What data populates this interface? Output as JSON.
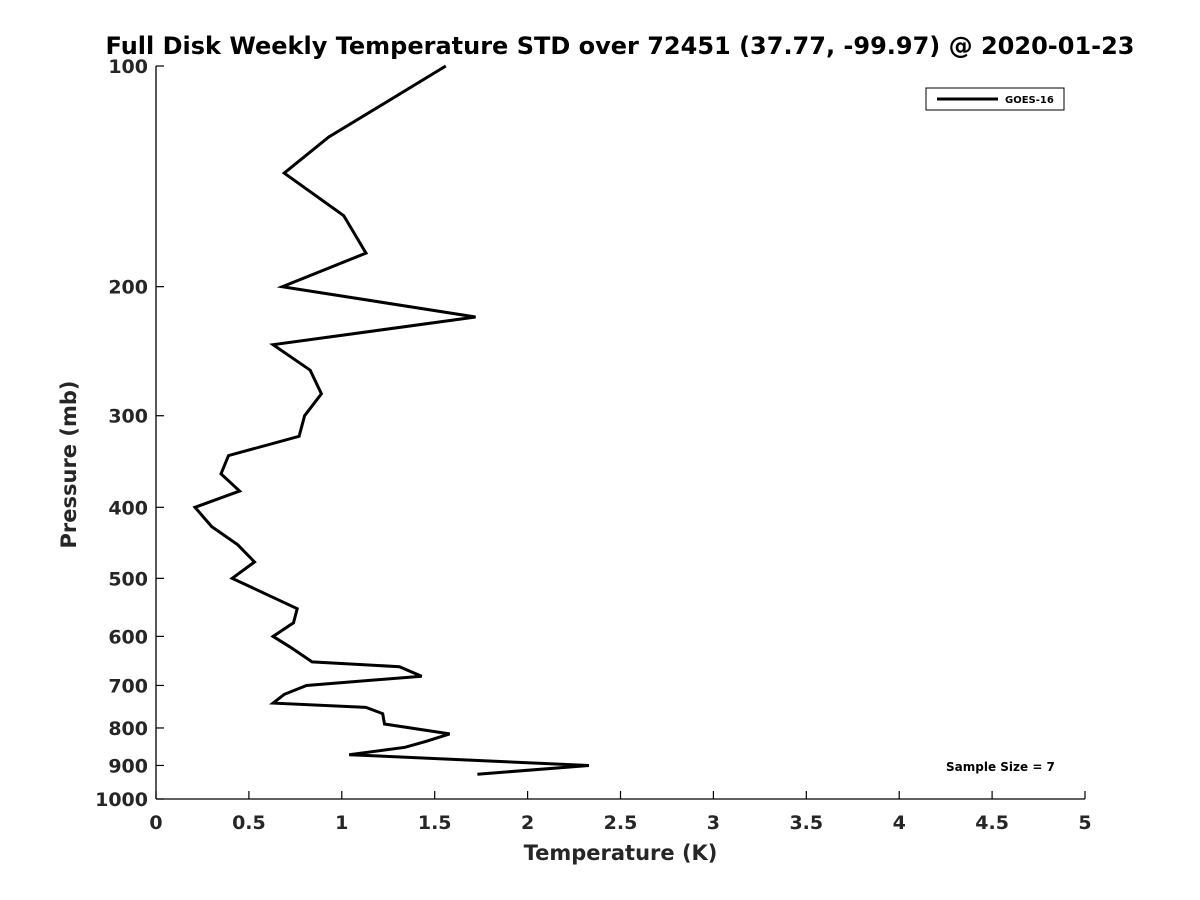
{
  "chart_data": {
    "type": "line",
    "title": "Full Disk Weekly Temperature STD over 72451 (37.77, -99.97) @ 2020-01-23",
    "xlabel": "Temperature (K)",
    "ylabel": "Pressure (mb)",
    "xlim": [
      0,
      5
    ],
    "ylim": [
      100,
      1000
    ],
    "y_scale": "log",
    "y_reversed": true,
    "grid": false,
    "legend_position": "top-right",
    "x_ticks": [
      "0",
      "0.5",
      "1",
      "1.5",
      "2",
      "2.5",
      "3",
      "3.5",
      "4",
      "4.5",
      "5"
    ],
    "x_tick_values": [
      0,
      0.5,
      1,
      1.5,
      2,
      2.5,
      3,
      3.5,
      4,
      4.5,
      5
    ],
    "y_ticks": [
      "100",
      "200",
      "300",
      "400",
      "500",
      "600",
      "700",
      "800",
      "900",
      "1000"
    ],
    "y_tick_values": [
      100,
      200,
      300,
      400,
      500,
      600,
      700,
      800,
      900,
      1000
    ],
    "series": [
      {
        "name": "GOES-16",
        "color": "#000000",
        "points": [
          {
            "x": 1.56,
            "p": 100
          },
          {
            "x": 0.93,
            "p": 125
          },
          {
            "x": 0.69,
            "p": 140
          },
          {
            "x": 1.01,
            "p": 160
          },
          {
            "x": 1.13,
            "p": 180
          },
          {
            "x": 0.68,
            "p": 200
          },
          {
            "x": 1.72,
            "p": 220
          },
          {
            "x": 0.63,
            "p": 240
          },
          {
            "x": 0.83,
            "p": 260
          },
          {
            "x": 0.89,
            "p": 280
          },
          {
            "x": 0.8,
            "p": 300
          },
          {
            "x": 0.77,
            "p": 320
          },
          {
            "x": 0.39,
            "p": 340
          },
          {
            "x": 0.35,
            "p": 360
          },
          {
            "x": 0.45,
            "p": 380
          },
          {
            "x": 0.21,
            "p": 400
          },
          {
            "x": 0.3,
            "p": 425
          },
          {
            "x": 0.44,
            "p": 450
          },
          {
            "x": 0.53,
            "p": 475
          },
          {
            "x": 0.41,
            "p": 500
          },
          {
            "x": 0.76,
            "p": 550
          },
          {
            "x": 0.74,
            "p": 575
          },
          {
            "x": 0.63,
            "p": 600
          },
          {
            "x": 0.72,
            "p": 620
          },
          {
            "x": 0.84,
            "p": 650
          },
          {
            "x": 1.31,
            "p": 660
          },
          {
            "x": 1.43,
            "p": 680
          },
          {
            "x": 0.81,
            "p": 700
          },
          {
            "x": 0.69,
            "p": 720
          },
          {
            "x": 0.63,
            "p": 740
          },
          {
            "x": 1.13,
            "p": 750
          },
          {
            "x": 1.22,
            "p": 765
          },
          {
            "x": 1.23,
            "p": 790
          },
          {
            "x": 1.58,
            "p": 815
          },
          {
            "x": 1.45,
            "p": 835
          },
          {
            "x": 1.34,
            "p": 850
          },
          {
            "x": 1.04,
            "p": 870
          },
          {
            "x": 2.33,
            "p": 900
          },
          {
            "x": 1.73,
            "p": 925
          }
        ]
      }
    ],
    "annotations": [
      "Sample Size = 7"
    ]
  }
}
